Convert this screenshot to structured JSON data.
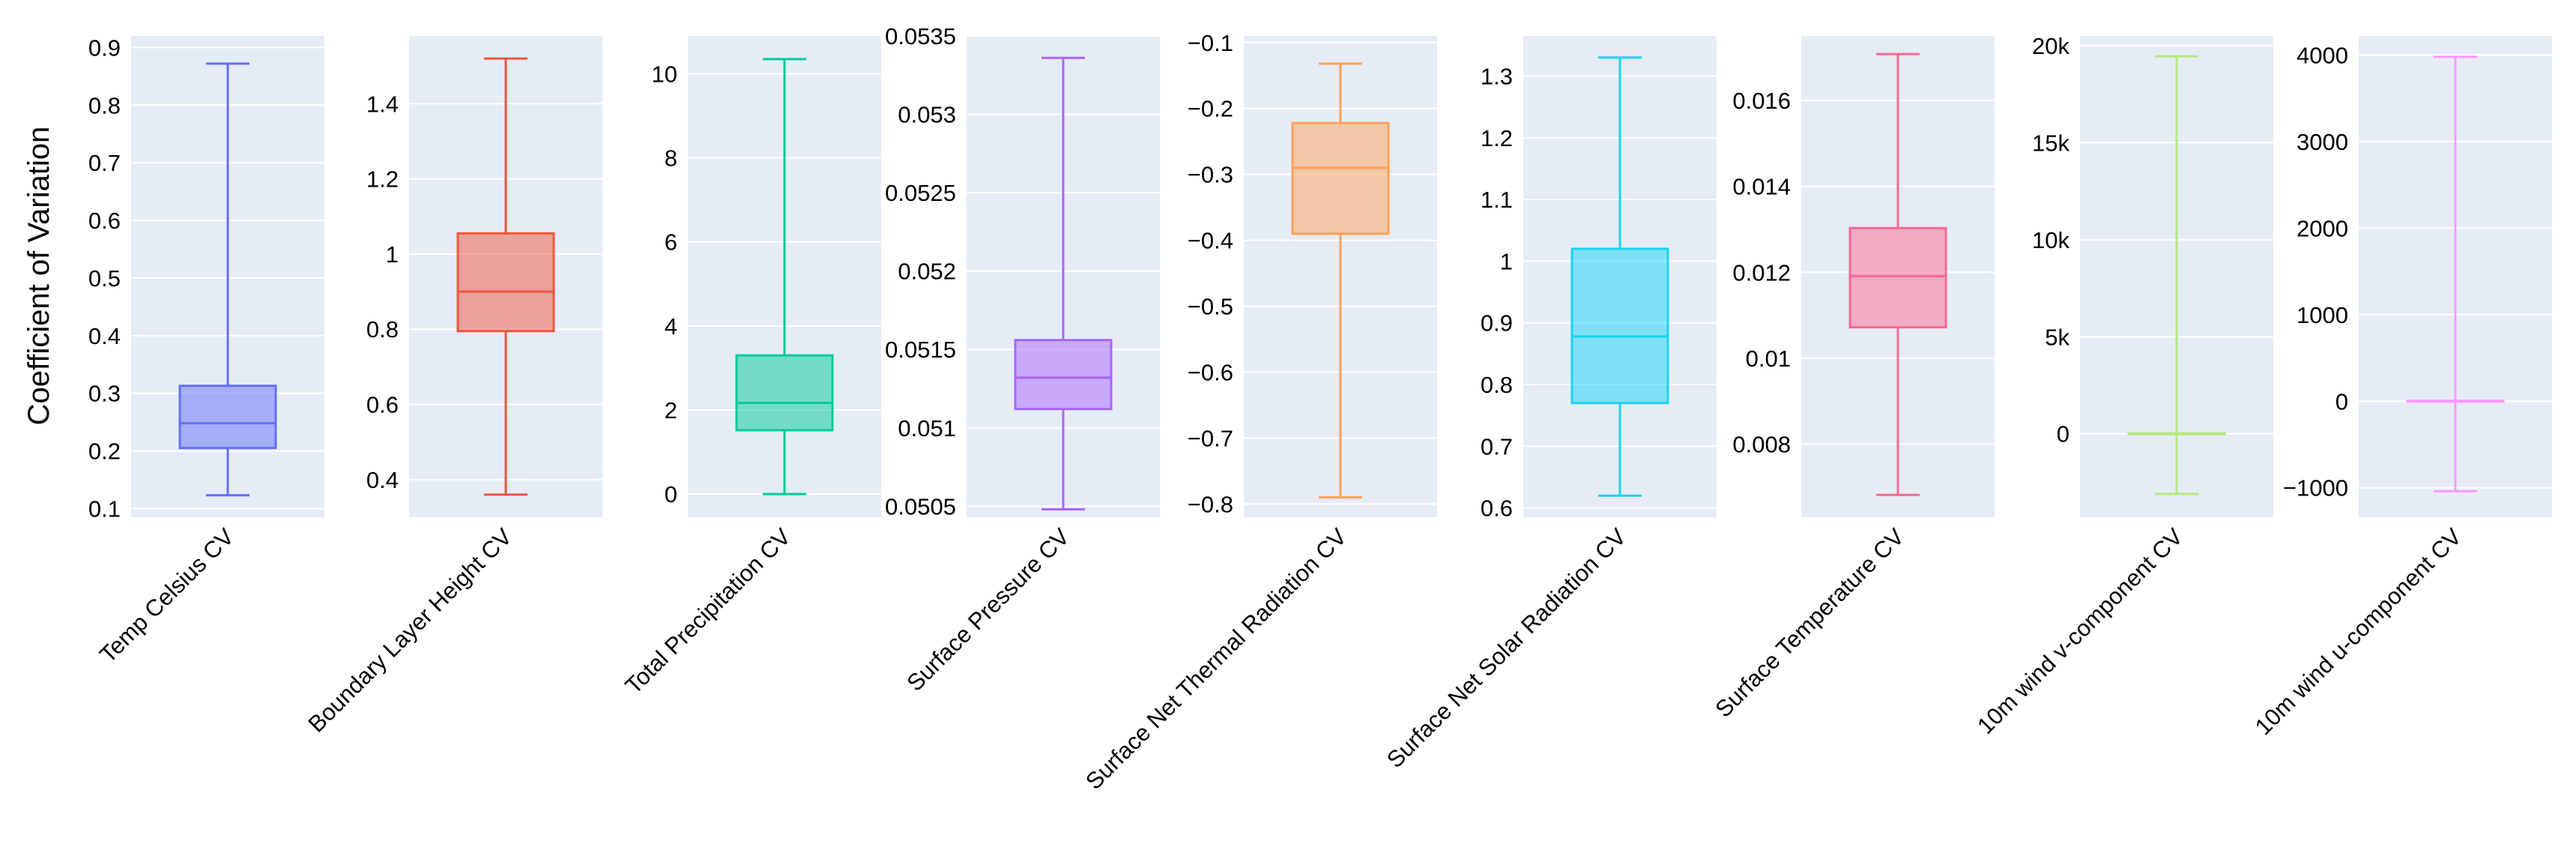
{
  "chart_data": {
    "type": "box",
    "ylabel": "Coefficient of Variation",
    "panels": [
      {
        "category": "Temp Celsius CV",
        "color": "#636efa",
        "ylim": [
          0.085,
          0.92
        ],
        "ticks": [
          0.1,
          0.2,
          0.3,
          0.4,
          0.5,
          0.6,
          0.7,
          0.8,
          0.9
        ],
        "tick_labels": [
          "0.1",
          "0.2",
          "0.3",
          "0.4",
          "0.5",
          "0.6",
          "0.7",
          "0.8",
          "0.9"
        ],
        "min": 0.123,
        "q1": 0.205,
        "median": 0.248,
        "q3": 0.313,
        "max": 0.872
      },
      {
        "category": "Boundary Layer Height CV",
        "color": "#ef553b",
        "ylim": [
          0.3,
          1.58
        ],
        "ticks": [
          0.4,
          0.6,
          0.8,
          1.0,
          1.2,
          1.4
        ],
        "tick_labels": [
          "0.4",
          "0.6",
          "0.8",
          "1",
          "1.2",
          "1.4"
        ],
        "min": 0.36,
        "q1": 0.795,
        "median": 0.9,
        "q3": 1.055,
        "max": 1.52
      },
      {
        "category": "Total Precipitation CV",
        "color": "#00cc96",
        "ylim": [
          -0.55,
          10.9
        ],
        "ticks": [
          0,
          2,
          4,
          6,
          8,
          10
        ],
        "tick_labels": [
          "0",
          "2",
          "4",
          "6",
          "8",
          "10"
        ],
        "min": 0.0,
        "q1": 1.52,
        "median": 2.17,
        "q3": 3.3,
        "max": 10.35
      },
      {
        "category": "Surface Pressure CV",
        "color": "#ab63fa",
        "ylim": [
          0.05043,
          0.0535
        ],
        "ticks": [
          0.0505,
          0.051,
          0.0515,
          0.052,
          0.0525,
          0.053,
          0.0535
        ],
        "tick_labels": [
          "0.0505",
          "0.051",
          "0.0515",
          "0.052",
          "0.0525",
          "0.053",
          "0.0535"
        ],
        "min": 0.05048,
        "q1": 0.05112,
        "median": 0.05132,
        "q3": 0.05156,
        "max": 0.05336
      },
      {
        "category": "Surface Net Thermal Radiation CV",
        "color": "#ffa15a",
        "ylim": [
          -0.82,
          -0.09
        ],
        "ticks": [
          -0.8,
          -0.7,
          -0.6,
          -0.5,
          -0.4,
          -0.3,
          -0.2,
          -0.1
        ],
        "tick_labels": [
          "−0.8",
          "−0.7",
          "−0.6",
          "−0.5",
          "−0.4",
          "−0.3",
          "−0.2",
          "−0.1"
        ],
        "min": -0.79,
        "q1": -0.39,
        "median": -0.29,
        "q3": -0.222,
        "max": -0.132
      },
      {
        "category": "Surface Net Solar Radiation CV",
        "color": "#19d3f3",
        "ylim": [
          0.585,
          1.365
        ],
        "ticks": [
          0.6,
          0.7,
          0.8,
          0.9,
          1.0,
          1.1,
          1.2,
          1.3
        ],
        "tick_labels": [
          "0.6",
          "0.7",
          "0.8",
          "0.9",
          "1",
          "1.1",
          "1.2",
          "1.3"
        ],
        "min": 0.62,
        "q1": 0.77,
        "median": 0.878,
        "q3": 1.02,
        "max": 1.33
      },
      {
        "category": "Surface Temperature CV",
        "color": "#ff6692",
        "ylim": [
          0.0063,
          0.0175
        ],
        "ticks": [
          0.008,
          0.01,
          0.012,
          0.014,
          0.016
        ],
        "tick_labels": [
          "0.008",
          "0.01",
          "0.012",
          "0.014",
          "0.016"
        ],
        "min": 0.00682,
        "q1": 0.01072,
        "median": 0.01191,
        "q3": 0.01303,
        "max": 0.01708
      },
      {
        "category": "10m wind v-component CV",
        "color": "#b6e880",
        "ylim": [
          -4300,
          20500
        ],
        "ticks": [
          0,
          5000,
          10000,
          15000,
          20000
        ],
        "tick_labels": [
          "0",
          "5k",
          "10k",
          "15k",
          "20k"
        ],
        "min": -3100,
        "q1": -20,
        "median": 0,
        "q3": 20,
        "max": 19450
      },
      {
        "category": "10m wind u-component CV",
        "color": "#ff97ff",
        "ylim": [
          -1340,
          4220
        ],
        "ticks": [
          -1000,
          0,
          1000,
          2000,
          3000,
          4000
        ],
        "tick_labels": [
          "−1000",
          "0",
          "1000",
          "2000",
          "3000",
          "4000"
        ],
        "min": -1040,
        "q1": -5,
        "median": 0,
        "q3": 5,
        "max": 3980
      }
    ]
  }
}
